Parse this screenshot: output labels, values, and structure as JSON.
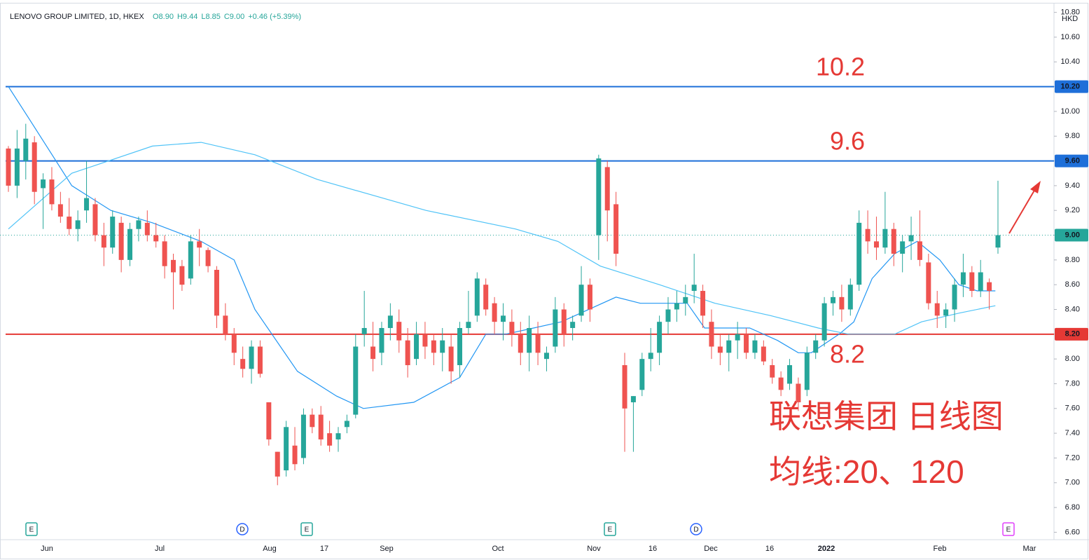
{
  "chart_data": {
    "type": "candlestick",
    "title": "LENOVO GROUP LIMITED, 1D, HKEX",
    "header_values": [
      "O8.90",
      "H9.44",
      "L8.85",
      "C9.00",
      "+0.46 (+5.39%)"
    ],
    "currency": "HKD",
    "ylim": [
      6.54,
      10.9
    ],
    "yticks": [
      {
        "value": 6.6,
        "label": "6.60"
      },
      {
        "value": 6.8,
        "label": "6.80"
      },
      {
        "value": 7.0,
        "label": "7.00"
      },
      {
        "value": 7.2,
        "label": "7.20"
      },
      {
        "value": 7.4,
        "label": "7.40"
      },
      {
        "value": 7.6,
        "label": "7.60"
      },
      {
        "value": 7.8,
        "label": "7.80"
      },
      {
        "value": 8.0,
        "label": "8.00"
      },
      {
        "value": 8.2,
        "label": "8.20"
      },
      {
        "value": 8.4,
        "label": "8.40"
      },
      {
        "value": 8.6,
        "label": "8.60"
      },
      {
        "value": 8.8,
        "label": "8.80"
      },
      {
        "value": 9.0,
        "label": "9.00"
      },
      {
        "value": 9.2,
        "label": "9.20"
      },
      {
        "value": 9.4,
        "label": "9.40"
      },
      {
        "value": 9.6,
        "label": "9.60"
      },
      {
        "value": 9.8,
        "label": "9.80"
      },
      {
        "value": 10.0,
        "label": "10.00"
      },
      {
        "value": 10.2,
        "label": "10.20"
      },
      {
        "value": 10.4,
        "label": "10.40"
      },
      {
        "value": 10.6,
        "label": "10.60"
      },
      {
        "value": 10.8,
        "label": "10.80"
      }
    ],
    "x_labels": [
      "Jun",
      "Jul",
      "Aug",
      "17",
      "Sep",
      "Oct",
      "Nov",
      "16",
      "Dec",
      "16",
      "2022",
      "Feb",
      "Mar"
    ],
    "events": [
      "E",
      "D",
      "E",
      "E",
      "D",
      "E"
    ],
    "up_color": "#26a69a",
    "down_color": "#ef5350",
    "candles": [
      [
        9.7,
        9.72,
        9.35,
        9.4
      ],
      [
        9.4,
        9.85,
        9.3,
        9.7
      ],
      [
        9.6,
        9.9,
        9.45,
        9.78
      ],
      [
        9.75,
        9.8,
        9.25,
        9.35
      ],
      [
        9.38,
        9.5,
        9.05,
        9.45
      ],
      [
        9.45,
        9.55,
        9.2,
        9.25
      ],
      [
        9.25,
        9.35,
        9.1,
        9.15
      ],
      [
        9.15,
        9.3,
        9.0,
        9.05
      ],
      [
        9.05,
        9.2,
        8.95,
        9.12
      ],
      [
        9.2,
        9.6,
        9.1,
        9.3
      ],
      [
        9.25,
        9.3,
        8.95,
        9.0
      ],
      [
        9.0,
        9.1,
        8.75,
        8.9
      ],
      [
        8.9,
        9.2,
        8.85,
        9.15
      ],
      [
        9.1,
        9.15,
        8.7,
        8.8
      ],
      [
        8.8,
        9.1,
        8.75,
        9.05
      ],
      [
        9.05,
        9.15,
        8.95,
        9.12
      ],
      [
        9.1,
        9.2,
        8.95,
        9.0
      ],
      [
        9.0,
        9.1,
        8.9,
        8.95
      ],
      [
        8.95,
        9.0,
        8.65,
        8.75
      ],
      [
        8.8,
        8.85,
        8.4,
        8.7
      ],
      [
        8.75,
        8.8,
        8.55,
        8.6
      ],
      [
        8.65,
        9.0,
        8.6,
        8.95
      ],
      [
        8.95,
        9.05,
        8.75,
        8.9
      ],
      [
        8.88,
        8.9,
        8.7,
        8.75
      ],
      [
        8.72,
        8.75,
        8.25,
        8.35
      ],
      [
        8.35,
        8.45,
        8.15,
        8.2
      ],
      [
        8.2,
        8.25,
        7.95,
        8.05
      ],
      [
        8.0,
        8.1,
        7.85,
        7.92
      ],
      [
        7.92,
        8.15,
        7.8,
        8.1
      ],
      [
        8.1,
        8.15,
        7.85,
        7.88
      ],
      [
        7.65,
        7.65,
        7.3,
        7.35
      ],
      [
        7.25,
        7.25,
        6.98,
        7.05
      ],
      [
        7.1,
        7.5,
        7.05,
        7.45
      ],
      [
        7.3,
        7.45,
        7.1,
        7.15
      ],
      [
        7.2,
        7.6,
        7.15,
        7.55
      ],
      [
        7.55,
        7.6,
        7.4,
        7.45
      ],
      [
        7.55,
        7.62,
        7.3,
        7.35
      ],
      [
        7.4,
        7.5,
        7.25,
        7.3
      ],
      [
        7.35,
        7.45,
        7.25,
        7.4
      ],
      [
        7.45,
        7.55,
        7.4,
        7.5
      ],
      [
        7.55,
        8.2,
        7.52,
        8.1
      ],
      [
        8.2,
        8.55,
        8.1,
        8.25
      ],
      [
        8.1,
        8.3,
        7.9,
        8.0
      ],
      [
        8.05,
        8.3,
        7.95,
        8.25
      ],
      [
        8.25,
        8.45,
        8.15,
        8.35
      ],
      [
        8.3,
        8.4,
        8.05,
        8.15
      ],
      [
        8.15,
        8.25,
        7.85,
        7.95
      ],
      [
        8.0,
        8.3,
        7.95,
        8.2
      ],
      [
        8.2,
        8.3,
        8.0,
        8.1
      ],
      [
        8.15,
        8.2,
        7.95,
        8.05
      ],
      [
        8.05,
        8.25,
        7.9,
        8.15
      ],
      [
        8.1,
        8.2,
        7.8,
        7.9
      ],
      [
        7.95,
        8.3,
        7.85,
        8.25
      ],
      [
        8.25,
        8.55,
        8.2,
        8.3
      ],
      [
        8.35,
        8.7,
        8.3,
        8.65
      ],
      [
        8.6,
        8.65,
        8.35,
        8.4
      ],
      [
        8.45,
        8.5,
        8.2,
        8.3
      ],
      [
        8.3,
        8.45,
        8.15,
        8.35
      ],
      [
        8.3,
        8.4,
        8.1,
        8.2
      ],
      [
        8.2,
        8.3,
        7.95,
        8.05
      ],
      [
        8.05,
        8.35,
        7.9,
        8.25
      ],
      [
        8.2,
        8.3,
        7.95,
        8.05
      ],
      [
        8.0,
        8.1,
        7.9,
        8.05
      ],
      [
        8.1,
        8.5,
        8.05,
        8.4
      ],
      [
        8.4,
        8.45,
        8.1,
        8.2
      ],
      [
        8.25,
        8.35,
        8.15,
        8.3
      ],
      [
        8.35,
        8.75,
        8.3,
        8.6
      ],
      [
        8.6,
        8.65,
        8.3,
        8.4
      ],
      [
        9.0,
        9.65,
        8.8,
        9.62
      ],
      [
        9.55,
        9.6,
        8.95,
        9.2
      ],
      [
        9.25,
        9.35,
        8.75,
        8.85
      ],
      [
        7.95,
        8.05,
        7.25,
        7.6
      ],
      [
        7.65,
        7.7,
        7.25,
        7.7
      ],
      [
        7.75,
        8.05,
        7.7,
        8.0
      ],
      [
        8.0,
        8.25,
        7.9,
        8.05
      ],
      [
        8.05,
        8.35,
        7.95,
        8.3
      ],
      [
        8.3,
        8.5,
        8.2,
        8.4
      ],
      [
        8.4,
        8.55,
        8.3,
        8.45
      ],
      [
        8.45,
        8.6,
        8.35,
        8.5
      ],
      [
        8.55,
        8.85,
        8.45,
        8.6
      ],
      [
        8.55,
        8.6,
        8.25,
        8.35
      ],
      [
        8.3,
        8.4,
        8.0,
        8.1
      ],
      [
        8.1,
        8.2,
        7.95,
        8.05
      ],
      [
        8.05,
        8.2,
        7.9,
        8.15
      ],
      [
        8.15,
        8.3,
        8.0,
        8.2
      ],
      [
        8.2,
        8.25,
        8.0,
        8.05
      ],
      [
        8.05,
        8.2,
        8.0,
        8.15
      ],
      [
        8.1,
        8.15,
        7.95,
        7.98
      ],
      [
        7.95,
        8.0,
        7.8,
        7.85
      ],
      [
        7.85,
        7.9,
        7.7,
        7.75
      ],
      [
        7.8,
        8.0,
        7.75,
        7.95
      ],
      [
        7.8,
        7.85,
        7.58,
        7.65
      ],
      [
        7.75,
        8.1,
        7.7,
        8.05
      ],
      [
        8.05,
        8.2,
        8.0,
        8.15
      ],
      [
        8.15,
        8.5,
        8.1,
        8.45
      ],
      [
        8.45,
        8.55,
        8.35,
        8.5
      ],
      [
        8.5,
        8.6,
        8.3,
        8.4
      ],
      [
        8.4,
        8.65,
        8.35,
        8.6
      ],
      [
        8.6,
        9.2,
        8.55,
        9.1
      ],
      [
        9.05,
        9.2,
        8.85,
        8.95
      ],
      [
        8.95,
        9.15,
        8.8,
        8.9
      ],
      [
        8.9,
        9.35,
        8.85,
        9.05
      ],
      [
        9.05,
        9.1,
        8.75,
        8.85
      ],
      [
        8.85,
        9.0,
        8.7,
        8.95
      ],
      [
        8.95,
        9.15,
        8.8,
        9.0
      ],
      [
        8.95,
        9.2,
        8.75,
        8.8
      ],
      [
        8.78,
        8.85,
        8.4,
        8.45
      ],
      [
        8.45,
        8.55,
        8.25,
        8.35
      ],
      [
        8.35,
        8.45,
        8.25,
        8.4
      ],
      [
        8.4,
        8.65,
        8.3,
        8.6
      ],
      [
        8.6,
        8.85,
        8.5,
        8.7
      ],
      [
        8.7,
        8.75,
        8.5,
        8.55
      ],
      [
        8.55,
        8.8,
        8.5,
        8.7
      ],
      [
        8.62,
        8.65,
        8.4,
        8.55
      ],
      [
        8.9,
        9.44,
        8.85,
        9.0
      ]
    ],
    "series": [
      {
        "color": "#2196f3",
        "x": [
          0,
          2.3,
          7.3,
          11.8,
          16.6,
          22.2,
          26,
          28.4,
          33.3,
          37.8,
          40.9,
          46.7,
          52,
          55,
          57.3,
          60.5,
          63.7,
          70,
          72.8,
          75,
          78.2,
          80.2,
          85.4,
          88.6,
          91,
          92.5,
          95.7,
          97.4,
          99.5,
          102.1,
          104.7,
          107.3,
          109.5,
          111.6,
          113.7
        ],
        "values": [
          10.2,
          9.95,
          9.4,
          9.2,
          9.1,
          8.95,
          8.8,
          8.4,
          7.9,
          7.7,
          7.6,
          7.65,
          7.85,
          8.2,
          8.2,
          8.25,
          8.3,
          8.5,
          8.45,
          8.45,
          8.45,
          8.25,
          8.25,
          8.15,
          8.05,
          8.05,
          8.2,
          8.3,
          8.65,
          8.85,
          8.95,
          8.8,
          8.6,
          8.55,
          8.55
        ]
      },
      {
        "color": "#4fc3f7",
        "x": [
          0,
          7.3,
          16.6,
          22.2,
          28.4,
          35.6,
          48.1,
          58.4,
          63.3,
          68.2,
          75,
          81.4,
          87.8,
          93.3,
          96.8,
          102.1,
          105.2,
          109.5,
          113.7
        ],
        "values": [
          9.05,
          9.5,
          9.72,
          9.75,
          9.65,
          9.45,
          9.2,
          9.05,
          8.95,
          8.75,
          8.6,
          8.45,
          8.35,
          8.25,
          8.2,
          8.2,
          8.3,
          8.37,
          8.43
        ]
      }
    ],
    "levels": [
      {
        "value": 10.2,
        "label": "10.20",
        "color": "#1e6fd9"
      },
      {
        "value": 9.6,
        "label": "9.60",
        "color": "#1e6fd9"
      },
      {
        "value": 8.2,
        "label": "8.20",
        "color": "#e53935"
      }
    ],
    "last_price": {
      "value": 9.0,
      "label": "9.00",
      "color": "#26a69a"
    },
    "annotations": [
      "10.2",
      "9.6",
      "8.2",
      "联想集团 日线图",
      "均线:20、120"
    ]
  }
}
